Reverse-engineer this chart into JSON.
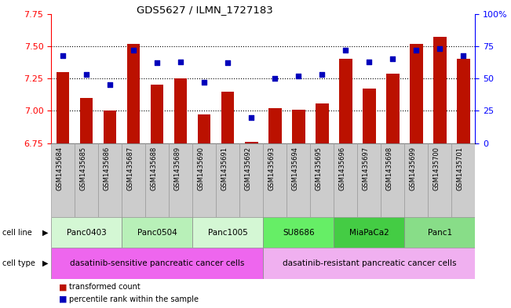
{
  "title": "GDS5627 / ILMN_1727183",
  "samples": [
    "GSM1435684",
    "GSM1435685",
    "GSM1435686",
    "GSM1435687",
    "GSM1435688",
    "GSM1435689",
    "GSM1435690",
    "GSM1435691",
    "GSM1435692",
    "GSM1435693",
    "GSM1435694",
    "GSM1435695",
    "GSM1435696",
    "GSM1435697",
    "GSM1435698",
    "GSM1435699",
    "GSM1435700",
    "GSM1435701"
  ],
  "bar_values": [
    7.3,
    7.1,
    7.0,
    7.52,
    7.2,
    7.25,
    6.97,
    7.15,
    6.76,
    7.02,
    7.01,
    7.06,
    7.4,
    7.17,
    7.29,
    7.52,
    7.57,
    7.4
  ],
  "percentile_values": [
    68,
    53,
    45,
    72,
    62,
    63,
    47,
    62,
    20,
    50,
    52,
    53,
    72,
    63,
    65,
    72,
    73,
    68
  ],
  "cell_lines": [
    {
      "name": "Panc0403",
      "start": 0,
      "end": 3,
      "color": "#d4f7d4"
    },
    {
      "name": "Panc0504",
      "start": 3,
      "end": 6,
      "color": "#b8f0b8"
    },
    {
      "name": "Panc1005",
      "start": 6,
      "end": 9,
      "color": "#d4f7d4"
    },
    {
      "name": "SU8686",
      "start": 9,
      "end": 12,
      "color": "#66ee66"
    },
    {
      "name": "MiaPaCa2",
      "start": 12,
      "end": 15,
      "color": "#44cc44"
    },
    {
      "name": "Panc1",
      "start": 15,
      "end": 18,
      "color": "#88dd88"
    }
  ],
  "cell_type_sensitive": {
    "label": "dasatinib-sensitive pancreatic cancer cells",
    "start": 0,
    "end": 9,
    "color": "#ee66ee"
  },
  "cell_type_resistant": {
    "label": "dasatinib-resistant pancreatic cancer cells",
    "start": 9,
    "end": 18,
    "color": "#f0b0f0"
  },
  "ylim_left": [
    6.75,
    7.75
  ],
  "ylim_right": [
    0,
    100
  ],
  "yticks_left": [
    6.75,
    7.0,
    7.25,
    7.5,
    7.75
  ],
  "yticks_right": [
    0,
    25,
    50,
    75,
    100
  ],
  "hgrid_lines": [
    7.0,
    7.25,
    7.5
  ],
  "bar_color": "#bb1100",
  "dot_color": "#0000bb",
  "legend_bar_label": "transformed count",
  "legend_dot_label": "percentile rank within the sample"
}
